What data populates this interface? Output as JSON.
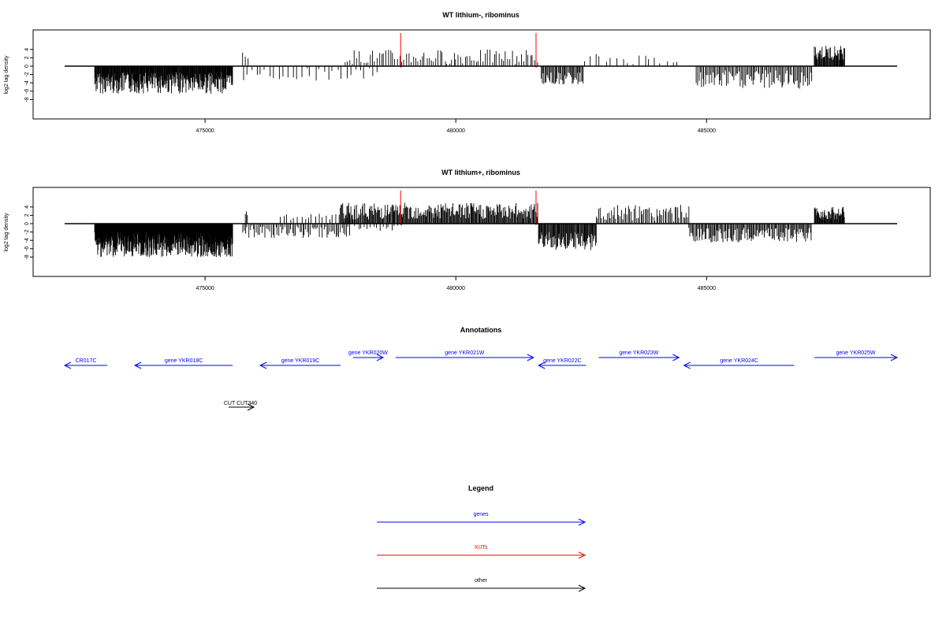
{
  "colors": {
    "gene": "#0000ff",
    "xut": "#ff0000",
    "other": "#000000",
    "bars": "#000000",
    "frame": "#000000"
  },
  "chart_data": [
    {
      "type": "bar",
      "title": "WT lithium-, ribominus",
      "ylabel": "log2 tag density",
      "xlim": [
        472200,
        488800
      ],
      "ylim": [
        -8.6,
        5.6
      ],
      "x_ticks": [
        475000,
        480000,
        485000
      ],
      "x_tick_labels": [
        "475000",
        "480000",
        "485000"
      ],
      "y_ticks": [
        4,
        2,
        0,
        -2,
        -4,
        -6,
        -8
      ],
      "y_tick_labels": [
        "4",
        "2",
        "0",
        "-2",
        "-4",
        "-6",
        "-8"
      ],
      "xut_markers": [
        478900,
        481600
      ],
      "segments": [
        {
          "x0": 472800,
          "x1": 475550,
          "sign": -1,
          "min": 1.5,
          "max": 6.6,
          "step": 10
        },
        {
          "x0": 475750,
          "x1": 478500,
          "sign": -1,
          "min": 0.5,
          "max": 3.5,
          "step": 90
        },
        {
          "x0": 475750,
          "x1": 475850,
          "sign": 1,
          "min": 1.0,
          "max": 3.5,
          "step": 50
        },
        {
          "x0": 477800,
          "x1": 481650,
          "sign": 1,
          "min": 0.5,
          "max": 4.0,
          "step": 45
        },
        {
          "x0": 481700,
          "x1": 482550,
          "sign": -1,
          "min": 1.5,
          "max": 4.5,
          "step": 20
        },
        {
          "x0": 482550,
          "x1": 484500,
          "sign": 1,
          "min": 0.5,
          "max": 3.0,
          "step": 110
        },
        {
          "x0": 484800,
          "x1": 487100,
          "sign": -1,
          "min": 1.0,
          "max": 5.5,
          "step": 25
        },
        {
          "x0": 487150,
          "x1": 487750,
          "sign": 1,
          "min": 1.5,
          "max": 5.0,
          "step": 12
        }
      ]
    },
    {
      "type": "bar",
      "title": "WT lithium+, ribominus",
      "ylabel": "log2 tag density",
      "xlim": [
        472200,
        488800
      ],
      "ylim": [
        -8.6,
        5.6
      ],
      "x_ticks": [
        475000,
        480000,
        485000
      ],
      "x_tick_labels": [
        "475000",
        "480000",
        "485000"
      ],
      "y_ticks": [
        4,
        2,
        0,
        -2,
        -4,
        -6,
        -8
      ],
      "y_tick_labels": [
        "4",
        "2",
        "0",
        "-2",
        "-4",
        "-6",
        "-8"
      ],
      "xut_markers": [
        478900,
        481600
      ],
      "segments": [
        {
          "x0": 472800,
          "x1": 475550,
          "sign": -1,
          "min": 2.0,
          "max": 8.0,
          "step": 6
        },
        {
          "x0": 475750,
          "x1": 477900,
          "sign": -1,
          "min": 0.5,
          "max": 3.5,
          "step": 30
        },
        {
          "x0": 475800,
          "x1": 475850,
          "sign": 1,
          "min": 2.0,
          "max": 3.5,
          "step": 25
        },
        {
          "x0": 476500,
          "x1": 477900,
          "sign": 1,
          "min": 0.5,
          "max": 2.5,
          "step": 70
        },
        {
          "x0": 477700,
          "x1": 481650,
          "sign": 1,
          "min": 1.0,
          "max": 5.0,
          "step": 16
        },
        {
          "x0": 478000,
          "x1": 478900,
          "sign": -1,
          "min": 0.3,
          "max": 2.0,
          "step": 60
        },
        {
          "x0": 481650,
          "x1": 482800,
          "sign": -1,
          "min": 2.0,
          "max": 6.5,
          "step": 14
        },
        {
          "x0": 482800,
          "x1": 484650,
          "sign": 1,
          "min": 0.5,
          "max": 4.5,
          "step": 28
        },
        {
          "x0": 484650,
          "x1": 487100,
          "sign": -1,
          "min": 1.0,
          "max": 4.5,
          "step": 20
        },
        {
          "x0": 487150,
          "x1": 487750,
          "sign": 1,
          "min": 1.0,
          "max": 4.0,
          "step": 12
        }
      ]
    }
  ],
  "annotations": {
    "title": "Annotations",
    "genes": [
      {
        "label": "CR017C",
        "x0": 472200,
        "x1": 473050,
        "dir": "left",
        "row": 1
      },
      {
        "label": "gene YKR018C",
        "x0": 473600,
        "x1": 475550,
        "dir": "left",
        "row": 1
      },
      {
        "label": "gene YKR019C",
        "x0": 476100,
        "x1": 477700,
        "dir": "left",
        "row": 1
      },
      {
        "label": "gene YKR020W",
        "x0": 477950,
        "x1": 478550,
        "dir": "right",
        "row": 0
      },
      {
        "label": "gene YKR021W",
        "x0": 478800,
        "x1": 481550,
        "dir": "right",
        "row": 0
      },
      {
        "label": "gene YKR022C",
        "x0": 481650,
        "x1": 482600,
        "dir": "left",
        "row": 1
      },
      {
        "label": "gene YKR023W",
        "x0": 482850,
        "x1": 484450,
        "dir": "right",
        "row": 0
      },
      {
        "label": "gene YKR024C",
        "x0": 484550,
        "x1": 486750,
        "dir": "left",
        "row": 1
      },
      {
        "label": "gene YKR025W",
        "x0": 487150,
        "x1": 488800,
        "dir": "right",
        "row": 0
      }
    ],
    "other": [
      {
        "label": "CUT CUT340",
        "x0": 475550,
        "x1": 475950,
        "dir": "right"
      }
    ]
  },
  "legend": {
    "title": "Legend",
    "entries": [
      {
        "label": "genes",
        "kind": "gene"
      },
      {
        "label": "XUTs",
        "kind": "xut"
      },
      {
        "label": "other",
        "kind": "other"
      }
    ]
  }
}
